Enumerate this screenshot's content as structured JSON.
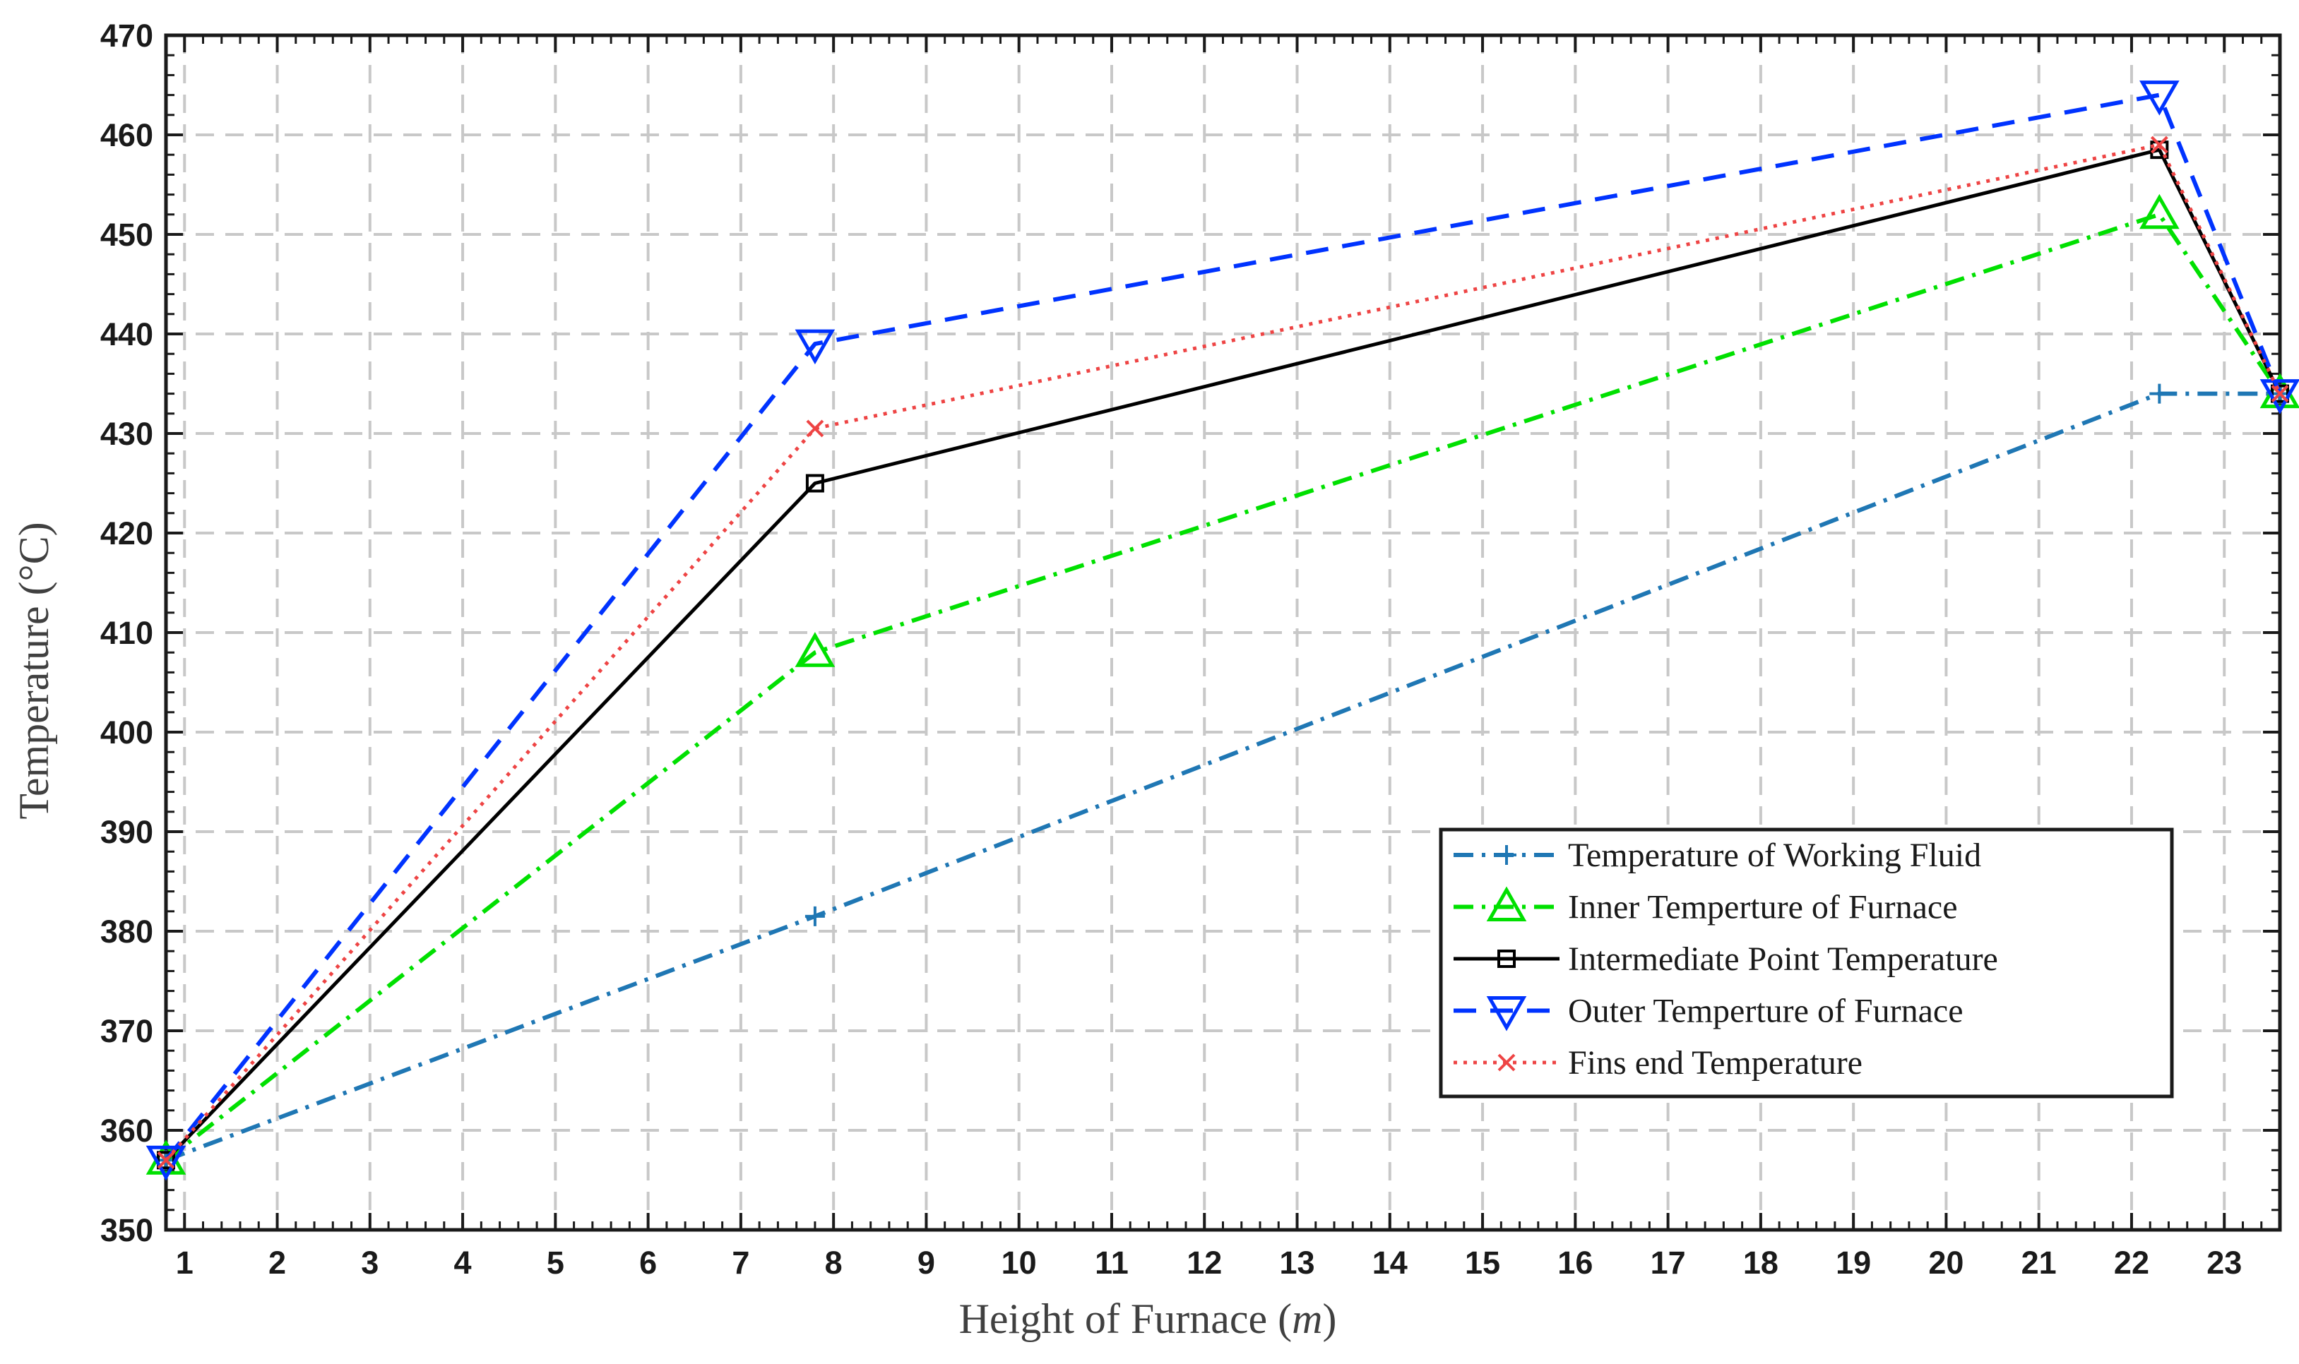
{
  "chart_data": {
    "type": "line",
    "xlabel": "Height of Furnace",
    "xlabel_unit": "m",
    "ylabel": "Temperature (°C)",
    "xlim": [
      0.8,
      23.6
    ],
    "ylim": [
      350,
      470
    ],
    "x_ticks": [
      1,
      2,
      3,
      4,
      5,
      6,
      7,
      8,
      9,
      10,
      11,
      12,
      13,
      14,
      15,
      16,
      17,
      18,
      19,
      20,
      21,
      22,
      23
    ],
    "y_ticks": [
      350,
      360,
      370,
      380,
      390,
      400,
      410,
      420,
      430,
      440,
      450,
      460,
      470
    ],
    "grid": true,
    "legend_position": "bottom-right",
    "series": [
      {
        "name": "Temperature of Working Fluid",
        "color": "#1f77b4",
        "line_style": "dash-dot",
        "marker": "plus",
        "x": [
          0.8,
          7.8,
          22.3,
          23.6
        ],
        "y": [
          357,
          381.5,
          434,
          434
        ]
      },
      {
        "name": "Inner Temperture of Furnace",
        "color": "#00e000",
        "line_style": "dash-dot",
        "marker": "triangle-up",
        "x": [
          0.8,
          7.8,
          22.3,
          23.6
        ],
        "y": [
          357,
          408,
          452,
          434
        ]
      },
      {
        "name": "Intermediate Point Temperature",
        "color": "#000000",
        "line_style": "solid",
        "marker": "square",
        "x": [
          0.8,
          7.8,
          22.3,
          23.6
        ],
        "y": [
          357,
          425,
          458.5,
          434
        ]
      },
      {
        "name": "Outer Temperture of Furnace",
        "color": "#0033ff",
        "line_style": "dashed",
        "marker": "triangle-down",
        "x": [
          0.8,
          7.8,
          22.3,
          23.6
        ],
        "y": [
          357,
          439,
          464,
          434
        ]
      },
      {
        "name": "Fins end Temperature",
        "color": "#ee4444",
        "line_style": "dotted",
        "marker": "x",
        "x": [
          0.8,
          7.8,
          22.3,
          23.6
        ],
        "y": [
          357,
          430.5,
          459,
          434
        ]
      }
    ]
  }
}
